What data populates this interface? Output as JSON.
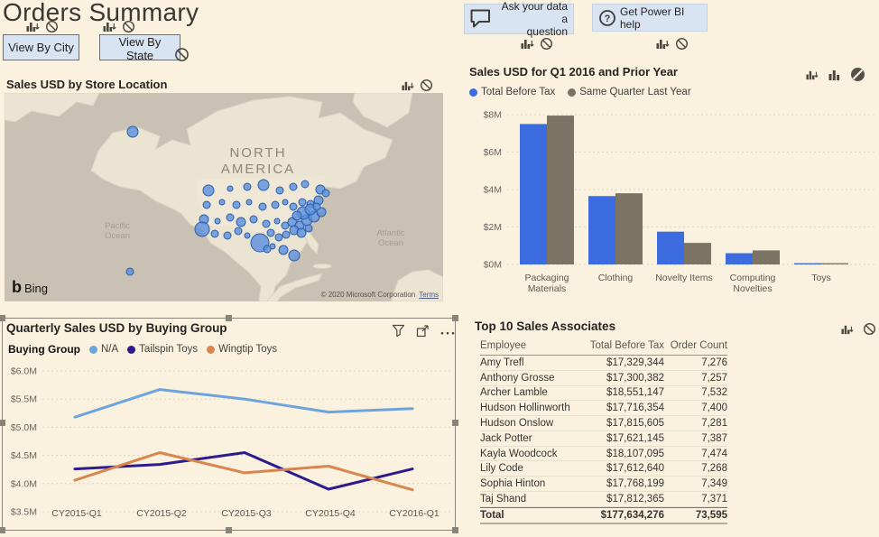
{
  "page": {
    "title": "Orders Summary"
  },
  "buttons": {
    "view_by_city": "View By City",
    "view_by_state": "View By State"
  },
  "help": {
    "ask_line1": "Ask your data a",
    "ask_line2": "question",
    "get_help": "Get Power BI help"
  },
  "icons": {
    "visual_header": "bar-chart-down-arrow-icon",
    "blocked": "no-entry-icon",
    "blocked_filled": "no-entry-filled-icon",
    "filter": "funnel-filter-icon",
    "focus": "focus-mode-icon",
    "more": "more-options-ellipsis-icon",
    "speech": "speech-bubble-icon",
    "question": "question-mark-circle-icon",
    "bing": "bing-logo"
  },
  "map": {
    "title": "Sales USD by Store Location",
    "region_line1": "NORTH",
    "region_line2": "AMERICA",
    "pacific_line1": "Pacific",
    "pacific_line2": "Ocean",
    "atlantic_line1": "Atlantic",
    "atlantic_line2": "Ocean",
    "bing": "Bing",
    "copyright": "© 2020 Microsoft Corporation",
    "terms": "Terms",
    "bubbles": [
      [
        142,
        43,
        6
      ],
      [
        139,
        198,
        4
      ],
      [
        226,
        108,
        6
      ],
      [
        250,
        106,
        3
      ],
      [
        269,
        104,
        4
      ],
      [
        287,
        102,
        6
      ],
      [
        305,
        108,
        4
      ],
      [
        320,
        104,
        4
      ],
      [
        333,
        101,
        4
      ],
      [
        350,
        107,
        5
      ],
      [
        224,
        124,
        4
      ],
      [
        241,
        121,
        3
      ],
      [
        257,
        124,
        4
      ],
      [
        271,
        121,
        3
      ],
      [
        286,
        126,
        4
      ],
      [
        300,
        124,
        4
      ],
      [
        311,
        121,
        3
      ],
      [
        320,
        126,
        4
      ],
      [
        330,
        121,
        4
      ],
      [
        339,
        123,
        4
      ],
      [
        348,
        119,
        5
      ],
      [
        356,
        111,
        4
      ],
      [
        221,
        140,
        5
      ],
      [
        236,
        142,
        3
      ],
      [
        250,
        138,
        4
      ],
      [
        262,
        143,
        5
      ],
      [
        276,
        140,
        4
      ],
      [
        290,
        145,
        4
      ],
      [
        302,
        142,
        3
      ],
      [
        311,
        147,
        4
      ],
      [
        319,
        143,
        5
      ],
      [
        327,
        147,
        5
      ],
      [
        335,
        141,
        6
      ],
      [
        343,
        137,
        6
      ],
      [
        351,
        132,
        5
      ],
      [
        331,
        133,
        7
      ],
      [
        339,
        129,
        6
      ],
      [
        346,
        126,
        4
      ],
      [
        324,
        136,
        5
      ],
      [
        219,
        151,
        8
      ],
      [
        233,
        156,
        4
      ],
      [
        247,
        158,
        4
      ],
      [
        259,
        153,
        4
      ],
      [
        269,
        158,
        3
      ],
      [
        295,
        155,
        4
      ],
      [
        304,
        160,
        4
      ],
      [
        312,
        157,
        4
      ],
      [
        321,
        152,
        5
      ],
      [
        329,
        155,
        5
      ],
      [
        337,
        150,
        4
      ],
      [
        283,
        166,
        10
      ],
      [
        297,
        170,
        3
      ],
      [
        309,
        174,
        5
      ],
      [
        321,
        180,
        6
      ],
      [
        291,
        173,
        4
      ]
    ]
  },
  "chart_data": [
    {
      "type": "bar",
      "title": "Sales USD for Q1 2016 and Prior Year",
      "categories": [
        "Packaging Materials",
        "Clothing",
        "Novelty Items",
        "Computing Novelties",
        "Toys"
      ],
      "series": [
        {
          "name": "Total Before Tax",
          "color": "#3d6be0",
          "values": [
            7.5,
            3.65,
            1.75,
            0.6,
            0.05
          ]
        },
        {
          "name": "Same Quarter Last Year",
          "color": "#7b7465",
          "values": [
            7.95,
            3.8,
            1.15,
            0.75,
            0.05
          ]
        }
      ],
      "ylim": [
        0,
        8
      ],
      "yticks": [
        "$0M",
        "$2M",
        "$4M",
        "$6M",
        "$8M"
      ],
      "legend_position": "top",
      "grid": "dotted horizontal"
    },
    {
      "type": "line",
      "title": "Quarterly Sales USD by Buying Group",
      "legend_title": "Buying Group",
      "x": [
        "CY2015-Q1",
        "CY2015-Q2",
        "CY2015-Q3",
        "CY2015-Q4",
        "CY2016-Q1"
      ],
      "series": [
        {
          "name": "N/A",
          "color": "#6ea4dd",
          "values": [
            5.18,
            5.67,
            5.5,
            5.27,
            5.33
          ]
        },
        {
          "name": "Tailspin Toys",
          "color": "#2b1b8c",
          "values": [
            4.26,
            4.34,
            4.55,
            3.9,
            4.26
          ]
        },
        {
          "name": "Wingtip Toys",
          "color": "#d9854e",
          "values": [
            4.06,
            4.55,
            4.19,
            4.31,
            3.89
          ]
        }
      ],
      "ylim": [
        3.5,
        6.0
      ],
      "yticks": [
        "$3.5M",
        "$4.0M",
        "$4.5M",
        "$5.0M",
        "$5.5M",
        "$6.0M"
      ],
      "legend_position": "top",
      "grid": "dotted horizontal"
    }
  ],
  "table": {
    "title": "Top 10 Sales Associates",
    "columns": [
      "Employee",
      "Total Before Tax",
      "Order Count"
    ],
    "rows": [
      [
        "Amy Trefl",
        "$17,329,344",
        "7,276"
      ],
      [
        "Anthony Grosse",
        "$17,300,382",
        "7,257"
      ],
      [
        "Archer Lamble",
        "$18,551,147",
        "7,532"
      ],
      [
        "Hudson Hollinworth",
        "$17,716,354",
        "7,400"
      ],
      [
        "Hudson Onslow",
        "$17,815,605",
        "7,281"
      ],
      [
        "Jack Potter",
        "$17,621,145",
        "7,387"
      ],
      [
        "Kayla Woodcock",
        "$18,107,095",
        "7,474"
      ],
      [
        "Lily Code",
        "$17,612,640",
        "7,268"
      ],
      [
        "Sophia Hinton",
        "$17,768,199",
        "7,349"
      ],
      [
        "Taj Shand",
        "$17,812,365",
        "7,371"
      ]
    ],
    "total": [
      "Total",
      "$177,634,276",
      "73,595"
    ]
  },
  "colors": {
    "background": "#faf1de",
    "button_bg": "#d9e4f2",
    "bar_blue": "#3d6be0",
    "bar_gray": "#7b7465",
    "line_na": "#6ea4dd",
    "line_tailspin": "#2b1b8c",
    "line_wingtip": "#d9854e",
    "map_ocean": "#c9c1b3",
    "map_land": "#ece4d3"
  }
}
